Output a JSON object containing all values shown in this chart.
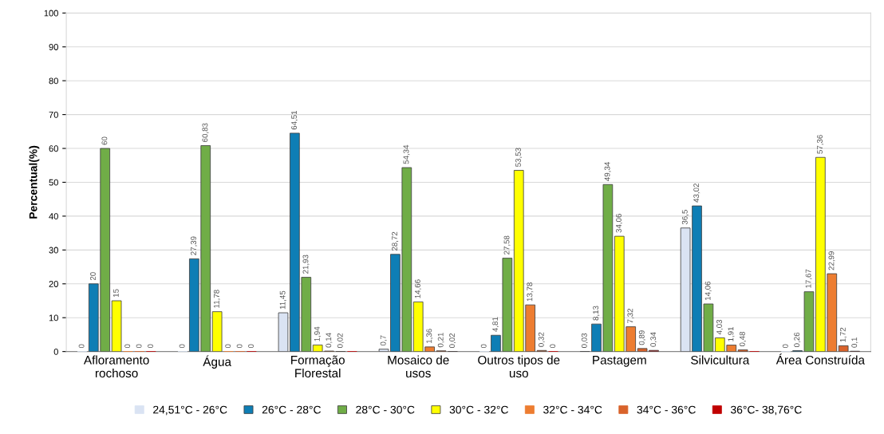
{
  "chart_data": {
    "type": "bar",
    "ylabel": "Percentual(%)",
    "categories": [
      "Afloramento\nrochoso",
      "Água",
      "Formação\nFlorestal",
      "Mosaico de\nusos",
      "Outros tipos de\nuso",
      "Pastagem",
      "Silvicultura",
      "Área Construída"
    ],
    "ylim": [
      0,
      100
    ],
    "yticks": [
      0,
      10,
      20,
      30,
      40,
      50,
      60,
      70,
      80,
      90,
      100
    ],
    "grid": "y",
    "legend": "bottom",
    "series": [
      {
        "name": "24,51°C - 26°C",
        "color": "#dae3f3",
        "values": [
          0,
          0,
          11.45,
          0.7,
          0,
          0.03,
          36.5,
          0
        ],
        "value_labels": [
          "0",
          "0",
          "11,45",
          "0,7",
          "0",
          "0,03",
          "36,5",
          "0"
        ]
      },
      {
        "name": "26°C - 28°C",
        "color": "#0e7eb5",
        "values": [
          20,
          27.39,
          64.51,
          28.72,
          4.81,
          8.13,
          43.02,
          0.26
        ],
        "value_labels": [
          "20",
          "27,39",
          "64,51",
          "28,72",
          "4,81",
          "8,13",
          "43,02",
          "0,26"
        ]
      },
      {
        "name": "28°C - 30°C",
        "color": "#70ad47",
        "values": [
          60,
          60.83,
          21.93,
          54.34,
          27.58,
          49.34,
          14.06,
          17.67
        ],
        "value_labels": [
          "60",
          "60,83",
          "21,93",
          "54,34",
          "27,58",
          "49,34",
          "14,06",
          "17,67"
        ]
      },
      {
        "name": "30°C - 32°C",
        "color": "#ffff00",
        "values": [
          15,
          11.78,
          1.94,
          14.66,
          53.53,
          34.06,
          4.03,
          57.36
        ],
        "value_labels": [
          "15",
          "11,78",
          "1,94",
          "14,66",
          "53,53",
          "34,06",
          "4,03",
          "57,36"
        ]
      },
      {
        "name": "32°C - 34°C",
        "color": "#ed7d31",
        "values": [
          0,
          0,
          0.14,
          1.36,
          13.78,
          7.32,
          1.91,
          22.99
        ],
        "value_labels": [
          "0",
          "0",
          "0,14",
          "1,36",
          "13,78",
          "7,32",
          "1,91",
          "22,99"
        ]
      },
      {
        "name": "34°C - 36°C",
        "color": "#d9632b",
        "values": [
          0,
          0,
          0.02,
          0.21,
          0.32,
          0.89,
          0.48,
          1.72
        ],
        "value_labels": [
          "0",
          "0",
          "0,02",
          "0,21",
          "0,32",
          "0,89",
          "0,48",
          "1,72"
        ]
      },
      {
        "name": "36°C- 38,76°C",
        "color": "#c00000",
        "values": [
          0,
          0,
          0,
          0.02,
          0,
          0.34,
          0,
          0.1
        ],
        "value_labels": [
          "0",
          "0",
          null,
          "0,02",
          "0",
          "0,34",
          null,
          "0,1"
        ]
      }
    ]
  }
}
